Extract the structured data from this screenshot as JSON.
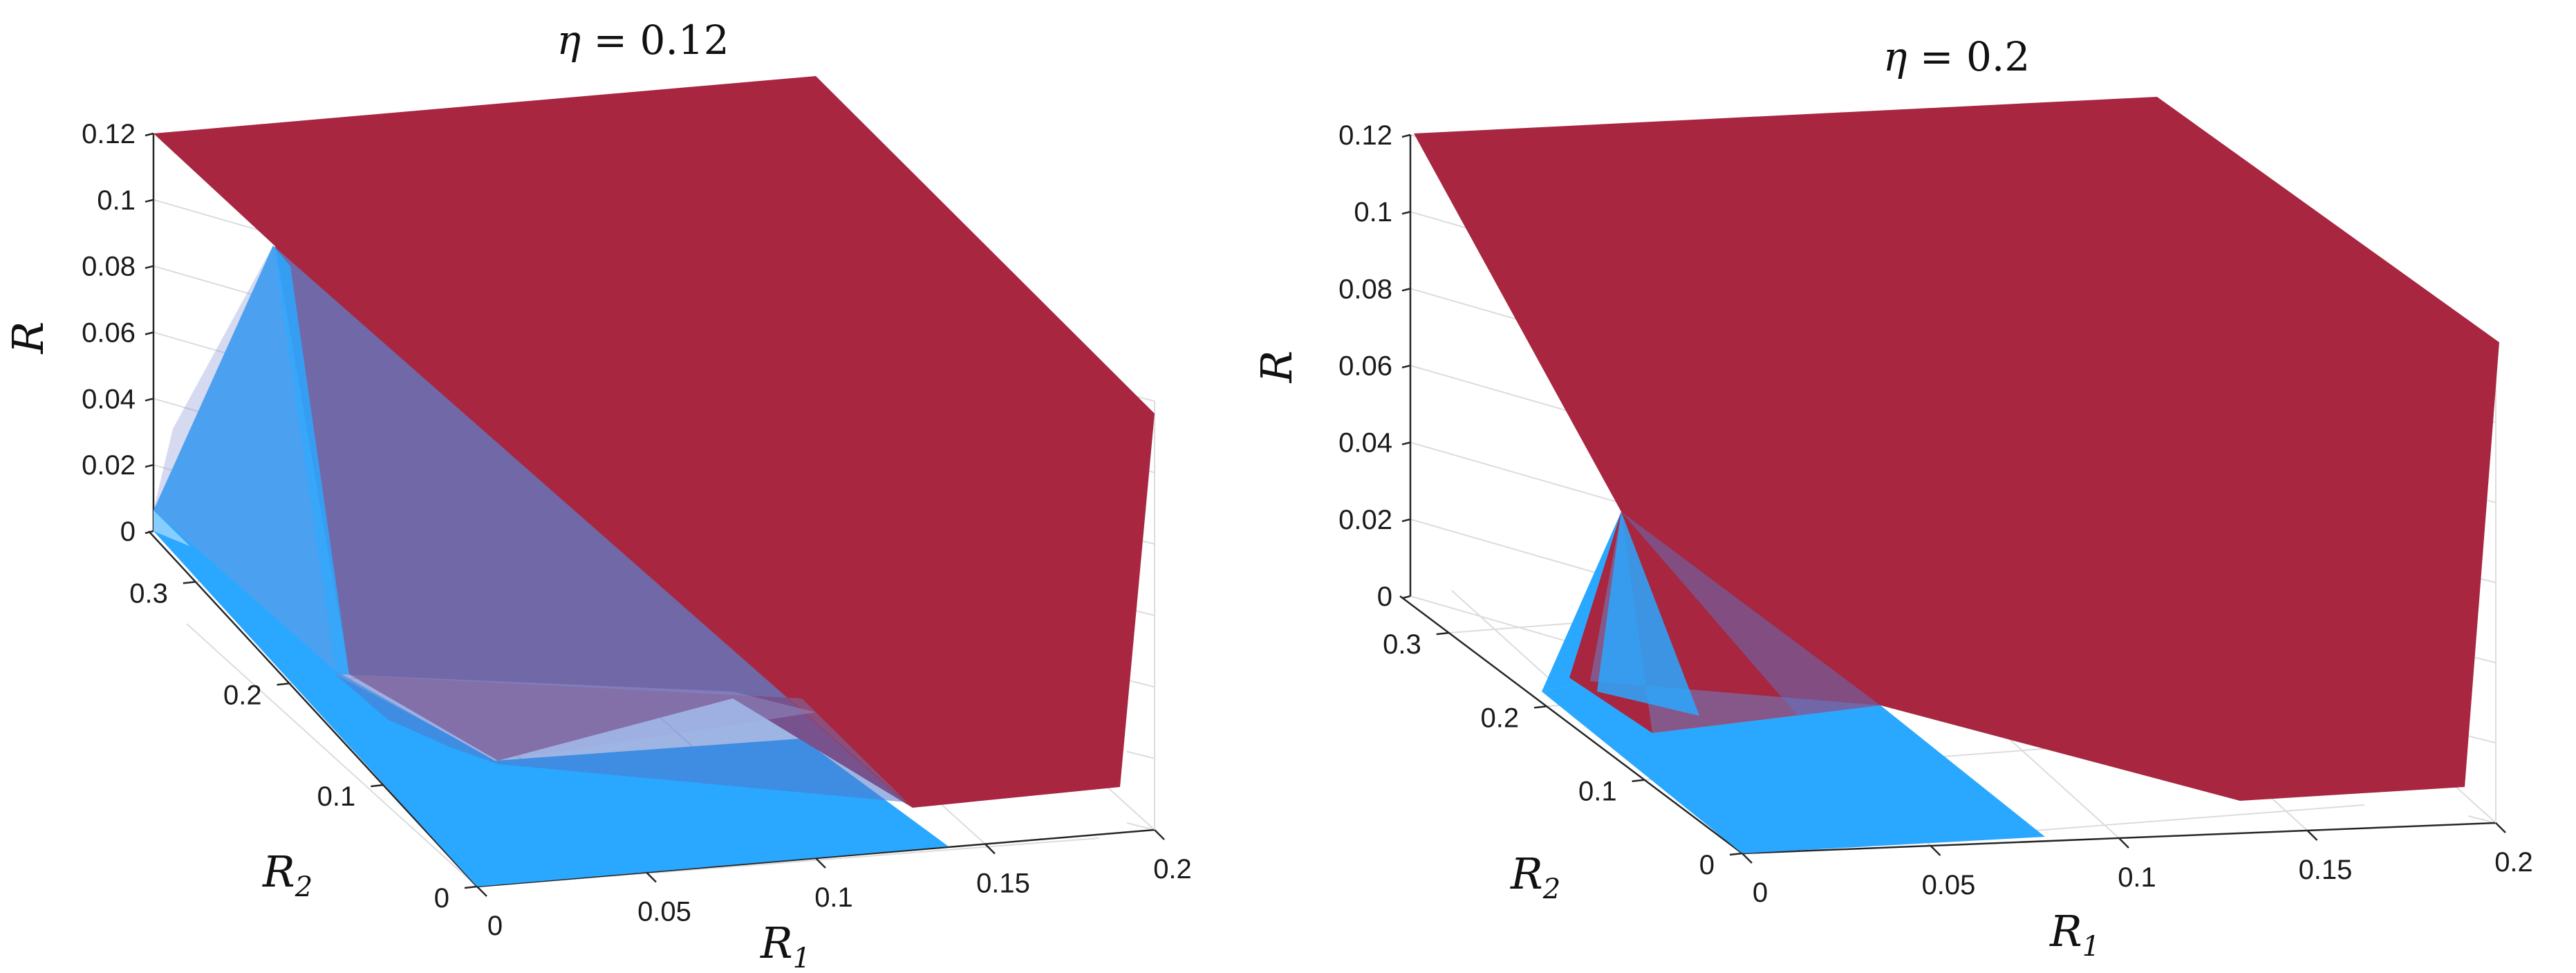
{
  "chart_data": [
    {
      "type": "surface3d",
      "title_symbol": "η",
      "title_eq": " = ",
      "title_value": "0.12",
      "xlabel_base": "R",
      "xlabel_sub": "1",
      "ylabel_base": "R",
      "ylabel_sub": "2",
      "zlabel": "R",
      "x_ticks": [
        "0",
        "0.05",
        "0.1",
        "0.15",
        "0.2"
      ],
      "y_ticks": [
        "0",
        "0.1",
        "0.2",
        "0.3"
      ],
      "z_ticks": [
        "0",
        "0.02",
        "0.04",
        "0.06",
        "0.08",
        "0.1",
        "0.12"
      ],
      "xlim": [
        0,
        0.2
      ],
      "ylim": [
        0,
        0.35
      ],
      "zlim": [
        0,
        0.12
      ],
      "grid": true,
      "colors": {
        "outer": "#a8263f",
        "inner": "#2aa8ff",
        "inner_transparent": "#6a82c8"
      }
    },
    {
      "type": "surface3d",
      "title_symbol": "η",
      "title_eq": " = ",
      "title_value": "0.2",
      "xlabel_base": "R",
      "xlabel_sub": "1",
      "ylabel_base": "R",
      "ylabel_sub": "2",
      "zlabel": "R",
      "x_ticks": [
        "0",
        "0.05",
        "0.1",
        "0.15",
        "0.2"
      ],
      "y_ticks": [
        "0",
        "0.1",
        "0.2",
        "0.3"
      ],
      "z_ticks": [
        "0",
        "0.02",
        "0.04",
        "0.06",
        "0.08",
        "0.1",
        "0.12"
      ],
      "xlim": [
        0,
        0.2
      ],
      "ylim": [
        0,
        0.35
      ],
      "zlim": [
        0,
        0.12
      ],
      "grid": true,
      "colors": {
        "outer": "#a8263f",
        "inner": "#2aa8ff",
        "inner_transparent": "#6a82c8"
      }
    }
  ]
}
